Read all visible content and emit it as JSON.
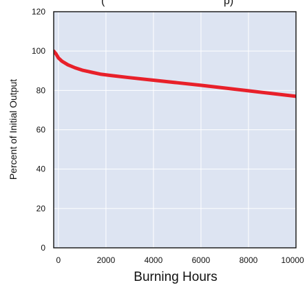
{
  "chart_data": {
    "type": "line",
    "title_partial": "(",
    "title_partial_right": "p)",
    "xlabel": "Burning Hours",
    "ylabel": "Percent of Initial Output",
    "xlim": [
      -200,
      10000
    ],
    "ylim": [
      0,
      120
    ],
    "x_ticks": [
      "0",
      "2000",
      "4000",
      "6000",
      "8000",
      "10000"
    ],
    "y_ticks": [
      "0",
      "20",
      "40",
      "60",
      "80",
      "100",
      "120"
    ],
    "grid": true,
    "colors": {
      "plot_bg": "#dde4f2",
      "grid": "#ffffff",
      "line": "#e8202a",
      "frame": "#111111"
    },
    "series": [
      {
        "x": [
          -200,
          -100,
          0,
          150,
          400,
          700,
          1000,
          1400,
          1800,
          2200,
          3000,
          4000,
          5000,
          6000,
          7000,
          8000,
          9000,
          10000
        ],
        "values": [
          100,
          98.5,
          96.5,
          94.8,
          93,
          91.5,
          90.3,
          89.2,
          88.2,
          87.6,
          86.5,
          85.2,
          83.9,
          82.6,
          81.2,
          79.8,
          78.4,
          77
        ]
      }
    ]
  }
}
